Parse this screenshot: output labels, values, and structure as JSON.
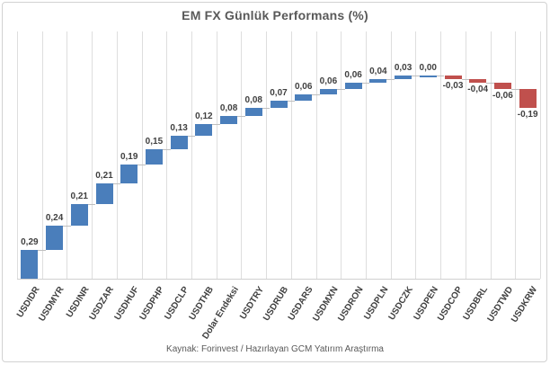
{
  "title": "EM FX Günlük Performans (%)",
  "footer": "Kaynak: Forinvest / Hazırlayan GCM Yatırım Araştırma",
  "chart_data": {
    "type": "bar",
    "subtype": "waterfall",
    "title": "EM FX Günlük Performans (%)",
    "categories": [
      "USDIDR",
      "USDMYR",
      "USDINR",
      "USDZAR",
      "USDHUF",
      "USDPHP",
      "USDCLP",
      "USDTHB",
      "Dolar Endeksi",
      "USDTRY",
      "USDRUB",
      "USDARS",
      "USDMXN",
      "USDRON",
      "USDPLN",
      "USDCZK",
      "USDPEN",
      "USDCOP",
      "USDBRL",
      "USDTWD",
      "USDKRW"
    ],
    "values": [
      0.29,
      0.24,
      0.21,
      0.21,
      0.19,
      0.15,
      0.13,
      0.12,
      0.08,
      0.08,
      0.07,
      0.06,
      0.06,
      0.06,
      0.04,
      0.03,
      0.0,
      -0.03,
      -0.04,
      -0.06,
      -0.19
    ],
    "value_labels": [
      "0,29",
      "0,24",
      "0,21",
      "0,21",
      "0,19",
      "0,15",
      "0,13",
      "0,12",
      "0,08",
      "0,08",
      "0,07",
      "0,06",
      "0,06",
      "0,06",
      "0,04",
      "0,03",
      "0,00",
      "-0,03",
      "-0,04",
      "-0,06",
      "-0,19"
    ],
    "xlabel": "",
    "ylabel": "",
    "ylim": [
      0,
      2.46
    ],
    "grid": "vertical-only",
    "legend": "none",
    "positive_color": "#4A7EBB",
    "negative_color": "#C0504D",
    "gridline_color": "#DEDEDE",
    "connector_color": "#BFBFBF",
    "data_label_color": "#404040",
    "axis_label_color": "#3F3F3F",
    "title_color": "#595959"
  }
}
